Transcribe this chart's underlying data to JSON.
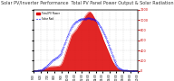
{
  "title": "Solar PV/Inverter Performance  Total PV Panel Power Output & Solar Radiation",
  "title_fontsize": 3.5,
  "bg_color": "#ffffff",
  "grid_color": "#cccccc",
  "bar_color": "#dd0000",
  "line_color": "#0000ff",
  "right_axis_color": "#cc0000",
  "x_labels": [
    "5:00",
    "6:00",
    "7:00",
    "8:00",
    "9:00",
    "10:00",
    "11:00",
    "12:00",
    "13:00",
    "14:00",
    "15:00",
    "16:00",
    "17:00",
    "18:00",
    "19:00",
    "20:00"
  ],
  "ylim": [
    0,
    12000
  ],
  "y2lim": [
    0,
    1200
  ],
  "pv_power": [
    0,
    0,
    0,
    0,
    0,
    10,
    30,
    50,
    80,
    120,
    180,
    250,
    320,
    400,
    480,
    560,
    640,
    700,
    750,
    800,
    820,
    830,
    840,
    850,
    860,
    870,
    880,
    900,
    920,
    950,
    1000,
    1100,
    1300,
    1600,
    2000,
    2500,
    3000,
    3500,
    4000,
    4500,
    5000,
    5500,
    6000,
    6500,
    7000,
    7200,
    7400,
    7600,
    7800,
    8000,
    8200,
    8500,
    8800,
    9000,
    9200,
    9500,
    9800,
    10000,
    10200,
    10500,
    10800,
    11000,
    11200,
    11400,
    11500,
    11600,
    11500,
    11300,
    11100,
    10800,
    10500,
    10200,
    9800,
    9500,
    9000,
    8600,
    8200,
    7800,
    7400,
    7000,
    6500,
    6000,
    5600,
    5200,
    4800,
    4400,
    4000,
    3600,
    3200,
    2800,
    2400,
    2000,
    1700,
    1400,
    1100,
    900,
    700,
    500,
    400,
    300,
    200,
    150,
    120,
    100,
    80,
    60,
    50,
    40,
    30,
    20,
    15,
    10,
    8,
    5,
    3,
    2,
    1,
    0,
    0,
    0,
    0,
    0,
    0,
    0,
    0,
    0,
    0,
    0,
    0
  ],
  "solar_rad": [
    0,
    0,
    0,
    0,
    0,
    2,
    5,
    8,
    12,
    18,
    25,
    35,
    45,
    58,
    72,
    88,
    105,
    120,
    138,
    155,
    172,
    188,
    200,
    215,
    228,
    240,
    252,
    265,
    278,
    292,
    308,
    328,
    355,
    390,
    430,
    475,
    520,
    565,
    610,
    655,
    698,
    740,
    782,
    820,
    855,
    882,
    905,
    925,
    942,
    958,
    970,
    982,
    990,
    998,
    1005,
    1010,
    1015,
    1018,
    1020,
    1022,
    1024,
    1025,
    1026,
    1027,
    1028,
    1027,
    1025,
    1022,
    1018,
    1012,
    1005,
    995,
    982,
    968,
    950,
    930,
    908,
    882,
    855,
    825,
    792,
    758,
    720,
    680,
    638,
    595,
    550,
    505,
    458,
    412,
    365,
    318,
    272,
    228,
    188,
    152,
    120,
    92,
    70,
    52,
    38,
    28,
    20,
    14,
    10,
    7,
    5,
    3,
    2,
    1,
    0,
    0,
    0,
    0,
    0,
    0,
    0,
    0,
    0,
    0,
    0,
    0
  ]
}
